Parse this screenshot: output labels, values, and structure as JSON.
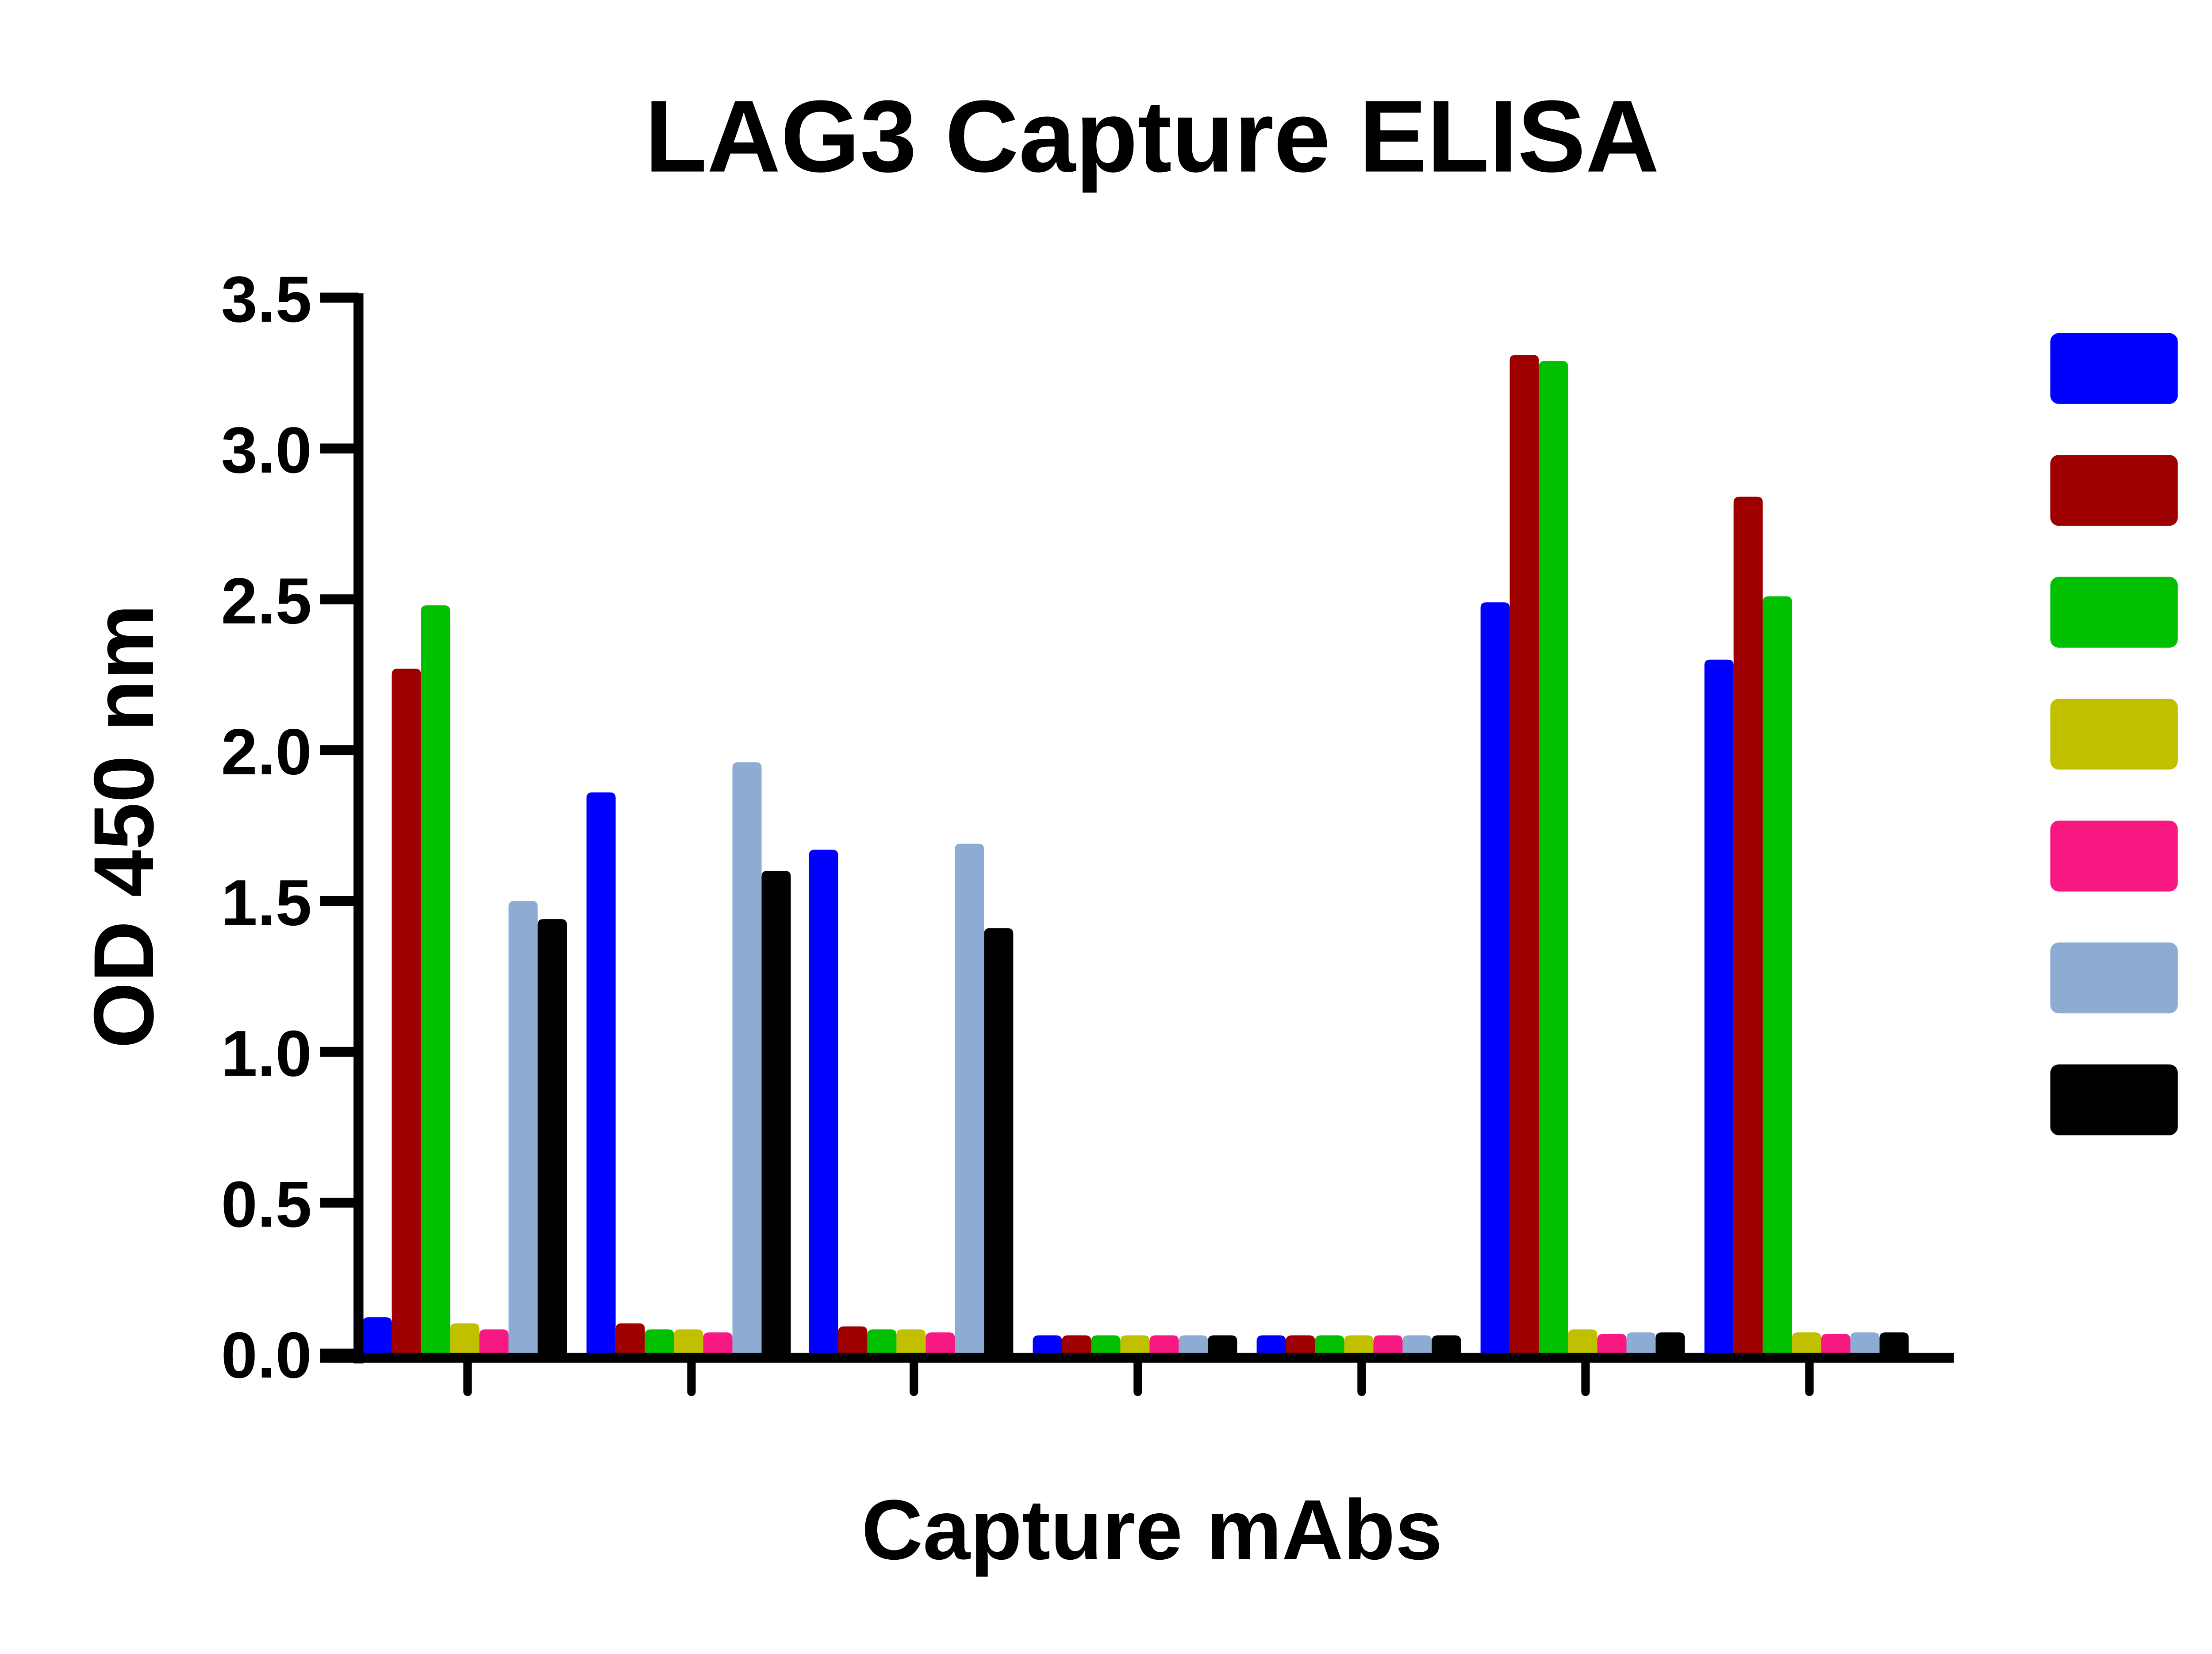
{
  "chart_data": {
    "type": "bar",
    "title": "LAG3 Capture ELISA",
    "xlabel": "Capture mAbs",
    "ylabel": "OD 450 nm",
    "ylim": [
      0,
      3.5
    ],
    "yticks": [
      "0.0",
      "0.5",
      "1.0",
      "1.5",
      "2.0",
      "2.5",
      "3.0",
      "3.5"
    ],
    "categories": [
      "",
      "",
      "",
      "",
      "",
      "",
      ""
    ],
    "grid": false,
    "legend_position": "right",
    "series": [
      {
        "name": "",
        "color": "#0000ff",
        "values": [
          0.12,
          1.86,
          1.67,
          0.06,
          0.06,
          2.49,
          2.3
        ]
      },
      {
        "name": "",
        "color": "#9e0000",
        "values": [
          2.27,
          0.1,
          0.09,
          0.06,
          0.06,
          3.31,
          2.84
        ]
      },
      {
        "name": "",
        "color": "#00c000",
        "values": [
          2.48,
          0.08,
          0.08,
          0.06,
          0.06,
          3.29,
          2.51
        ]
      },
      {
        "name": "",
        "color": "#c0c000",
        "values": [
          0.1,
          0.08,
          0.08,
          0.06,
          0.06,
          0.08,
          0.07
        ]
      },
      {
        "name": "",
        "color": "#f81882",
        "values": [
          0.08,
          0.07,
          0.07,
          0.06,
          0.06,
          0.065,
          0.065
        ]
      },
      {
        "name": "",
        "color": "#8cacd4",
        "values": [
          1.5,
          1.96,
          1.69,
          0.06,
          0.06,
          0.07,
          0.07
        ]
      },
      {
        "name": "",
        "color": "#000000",
        "values": [
          1.44,
          1.6,
          1.41,
          0.06,
          0.06,
          0.07,
          0.07
        ]
      }
    ]
  },
  "chart": {
    "title": "LAG3 Capture ELISA",
    "xlabel": "Capture mAbs",
    "ylabel": "OD 450 nm"
  }
}
